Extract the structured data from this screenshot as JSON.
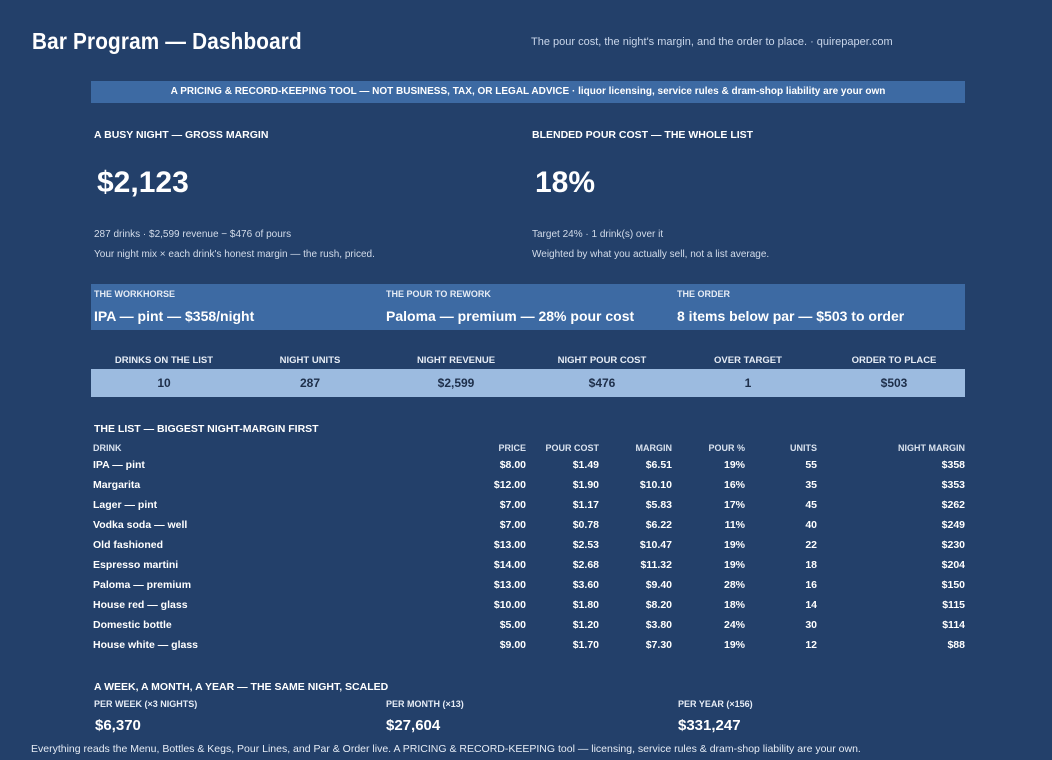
{
  "header": {
    "title": "Bar Program — Dashboard",
    "tagline": "The pour cost, the night's margin, and the order to place.  ·  quirepaper.com"
  },
  "disclaimer": "A PRICING & RECORD-KEEPING TOOL — NOT BUSINESS, TAX, OR LEGAL ADVICE  ·  liquor licensing, service rules & dram-shop liability are your own",
  "gross": {
    "label": "A BUSY NIGHT — GROSS MARGIN",
    "value": "$2,123",
    "line1": "287 drinks  ·  $2,599 revenue − $476 of pours",
    "line2": "Your night mix × each drink's honest margin — the rush, priced."
  },
  "pour": {
    "label": "BLENDED POUR COST — THE WHOLE LIST",
    "value": "18%",
    "line1": "Target 24%  ·  1 drink(s) over it",
    "line2": "Weighted by what you actually sell, not a list average."
  },
  "band": [
    {
      "label": "THE WORKHORSE",
      "value": "IPA — pint — $358/night"
    },
    {
      "label": "THE POUR TO REWORK",
      "value": "Paloma — premium — 28% pour cost"
    },
    {
      "label": "THE ORDER",
      "value": "8 items below par — $503 to order"
    }
  ],
  "kpis": [
    {
      "label": "DRINKS ON THE LIST",
      "value": "10"
    },
    {
      "label": "NIGHT UNITS",
      "value": "287"
    },
    {
      "label": "NIGHT REVENUE",
      "value": "$2,599"
    },
    {
      "label": "NIGHT POUR COST",
      "value": "$476"
    },
    {
      "label": "OVER TARGET",
      "value": "1"
    },
    {
      "label": "ORDER TO PLACE",
      "value": "$503"
    }
  ],
  "list": {
    "title": "THE LIST — BIGGEST NIGHT-MARGIN FIRST",
    "columns": [
      "DRINK",
      "PRICE",
      "POUR COST",
      "MARGIN",
      "POUR %",
      "UNITS",
      "NIGHT MARGIN"
    ],
    "rows": [
      [
        "IPA — pint",
        "$8.00",
        "$1.49",
        "$6.51",
        "19%",
        "55",
        "$358"
      ],
      [
        "Margarita",
        "$12.00",
        "$1.90",
        "$10.10",
        "16%",
        "35",
        "$353"
      ],
      [
        "Lager — pint",
        "$7.00",
        "$1.17",
        "$5.83",
        "17%",
        "45",
        "$262"
      ],
      [
        "Vodka soda — well",
        "$7.00",
        "$0.78",
        "$6.22",
        "11%",
        "40",
        "$249"
      ],
      [
        "Old fashioned",
        "$13.00",
        "$2.53",
        "$10.47",
        "19%",
        "22",
        "$230"
      ],
      [
        "Espresso martini",
        "$14.00",
        "$2.68",
        "$11.32",
        "19%",
        "18",
        "$204"
      ],
      [
        "Paloma — premium",
        "$13.00",
        "$3.60",
        "$9.40",
        "28%",
        "16",
        "$150"
      ],
      [
        "House red — glass",
        "$10.00",
        "$1.80",
        "$8.20",
        "18%",
        "14",
        "$115"
      ],
      [
        "Domestic bottle",
        "$5.00",
        "$1.20",
        "$3.80",
        "24%",
        "30",
        "$114"
      ],
      [
        "House white — glass",
        "$9.00",
        "$1.70",
        "$7.30",
        "19%",
        "12",
        "$88"
      ]
    ]
  },
  "scaled": {
    "title": "A WEEK, A MONTH, A YEAR — THE SAME NIGHT, SCALED",
    "items": [
      {
        "label": "PER WEEK (×3 NIGHTS)",
        "value": "$6,370"
      },
      {
        "label": "PER MONTH (×13)",
        "value": "$27,604"
      },
      {
        "label": "PER YEAR (×156)",
        "value": "$331,247"
      }
    ]
  },
  "footer": "Everything reads the Menu, Bottles & Kegs, Pour Lines, and Par & Order live. A PRICING & RECORD-KEEPING tool — licensing, service rules & dram-shop liability are your own.",
  "colors": {
    "background": "#23406a",
    "band": "#3d6aa3",
    "kpi_bar": "#9cbbe0"
  }
}
